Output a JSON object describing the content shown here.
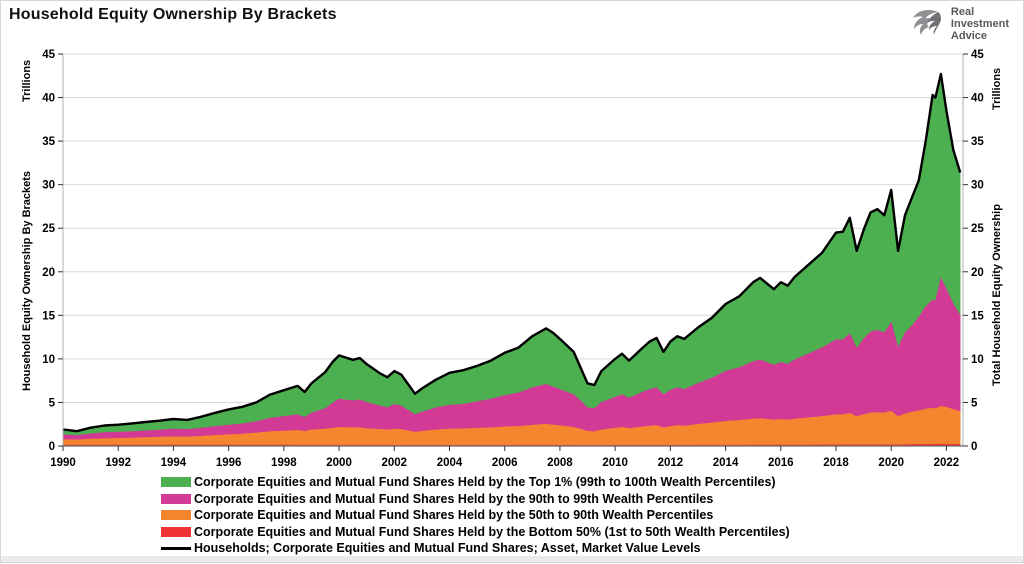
{
  "page": {
    "title": "Household Equity Ownership By Brackets"
  },
  "logo": {
    "line1": "Real",
    "line2": "Investment",
    "line3": "Advice",
    "icon": "eagle-icon"
  },
  "axes": {
    "left_unit": "Trillions",
    "left_label": "Household Equity Ownership By Brackets",
    "right_unit": "Trillions",
    "right_label": "Total Household Equity Ownership"
  },
  "colors": {
    "top1": "#4caf50",
    "p90_99": "#d23a96",
    "p50_90": "#f5852e",
    "bottom50": "#ee3233",
    "total_line": "#000000",
    "gridline": "#d9d9d9",
    "spine": "#b0b0b0",
    "tick": "#333333"
  },
  "legend": [
    {
      "type": "swatch",
      "color": "#4caf50",
      "label": "Corporate Equities and Mutual Fund Shares Held by the Top 1% (99th to 100th Wealth Percentiles)"
    },
    {
      "type": "swatch",
      "color": "#d23a96",
      "label": "Corporate Equities and Mutual Fund Shares Held by the 90th to 99th Wealth Percentiles"
    },
    {
      "type": "swatch",
      "color": "#f5852e",
      "label": "Corporate Equities and Mutual Fund Shares Held by the 50th to 90th Wealth Percentiles"
    },
    {
      "type": "swatch",
      "color": "#ee3233",
      "label": "Corporate Equities and Mutual Fund Shares Held by the Bottom 50% (1st to 50th Wealth Percentiles)"
    },
    {
      "type": "line",
      "color": "#000000",
      "label": "Households; Corporate Equities and Mutual Fund Shares; Asset, Market Value Levels"
    }
  ],
  "chart_data": {
    "type": "area",
    "stacked": true,
    "note": "Stacked area chart of US household equity ownership in $ trillions; series values below are cumulative stack-top boundaries read from the chart; black line = total (equals top-1% boundary).",
    "title": "Household Equity Ownership By Brackets",
    "ylabel_left": "Household Equity Ownership By Brackets (Trillions)",
    "ylabel_right": "Total Household Equity Ownership (Trillions)",
    "ylim": [
      0,
      45
    ],
    "xlim": [
      1990,
      2022.6
    ],
    "y_ticks": [
      0,
      5,
      10,
      15,
      20,
      25,
      30,
      35,
      40,
      45
    ],
    "x_ticks": [
      1990,
      1992,
      1994,
      1996,
      1998,
      2000,
      2002,
      2004,
      2006,
      2008,
      2010,
      2012,
      2014,
      2016,
      2018,
      2020,
      2022
    ],
    "grid": "horizontal",
    "legend_position": "bottom",
    "x": [
      1990.0,
      1990.5,
      1991.0,
      1991.5,
      1992.0,
      1992.5,
      1993.0,
      1993.5,
      1994.0,
      1994.5,
      1995.0,
      1995.5,
      1996.0,
      1996.5,
      1997.0,
      1997.5,
      1998.0,
      1998.5,
      1998.75,
      1999.0,
      1999.5,
      1999.75,
      2000.0,
      2000.5,
      2000.75,
      2001.0,
      2001.5,
      2001.75,
      2002.0,
      2002.25,
      2002.75,
      2003.0,
      2003.5,
      2004.0,
      2004.5,
      2005.0,
      2005.5,
      2006.0,
      2006.5,
      2007.0,
      2007.5,
      2007.75,
      2008.0,
      2008.5,
      2008.75,
      2009.0,
      2009.25,
      2009.5,
      2010.0,
      2010.25,
      2010.5,
      2011.0,
      2011.25,
      2011.5,
      2011.75,
      2012.0,
      2012.25,
      2012.5,
      2013.0,
      2013.5,
      2014.0,
      2014.5,
      2015.0,
      2015.25,
      2015.75,
      2016.0,
      2016.25,
      2016.5,
      2017.0,
      2017.5,
      2018.0,
      2018.25,
      2018.5,
      2018.75,
      2019.0,
      2019.25,
      2019.5,
      2019.75,
      2020.0,
      2020.25,
      2020.5,
      2020.75,
      2021.0,
      2021.25,
      2021.5,
      2021.6,
      2021.8,
      2022.0,
      2022.25,
      2022.5
    ],
    "series": [
      {
        "name": "Corporate Equities and Mutual Fund Shares Held by the Top 1% (99th to 100th Wealth Percentiles)",
        "color": "#4caf50",
        "cumulative_top": [
          1.9,
          1.7,
          2.1,
          2.35,
          2.45,
          2.6,
          2.75,
          2.9,
          3.1,
          3.0,
          3.35,
          3.8,
          4.2,
          4.5,
          5.0,
          5.9,
          6.4,
          6.9,
          6.2,
          7.2,
          8.5,
          9.6,
          10.4,
          9.9,
          10.1,
          9.4,
          8.3,
          7.9,
          8.6,
          8.2,
          6.0,
          6.6,
          7.6,
          8.4,
          8.7,
          9.2,
          9.8,
          10.7,
          11.3,
          12.6,
          13.5,
          13.0,
          12.3,
          10.8,
          9.0,
          7.2,
          7.0,
          8.6,
          10.0,
          10.6,
          9.8,
          11.3,
          12.0,
          12.4,
          10.8,
          12.0,
          12.6,
          12.3,
          13.6,
          14.7,
          16.3,
          17.2,
          18.8,
          19.3,
          18.0,
          18.8,
          18.4,
          19.4,
          20.8,
          22.2,
          24.5,
          24.6,
          26.2,
          22.4,
          24.8,
          26.8,
          27.2,
          26.5,
          29.4,
          22.4,
          26.5,
          28.5,
          30.5,
          35.0,
          40.3,
          40.0,
          42.7,
          38.5,
          34.0,
          31.4
        ]
      },
      {
        "name": "Corporate Equities and Mutual Fund Shares Held by the 90th to 99th Wealth Percentiles",
        "color": "#d23a96",
        "cumulative_top": [
          1.3,
          1.2,
          1.4,
          1.55,
          1.6,
          1.65,
          1.75,
          1.85,
          1.95,
          1.9,
          2.05,
          2.25,
          2.4,
          2.55,
          2.8,
          3.2,
          3.4,
          3.6,
          3.3,
          3.8,
          4.3,
          4.9,
          5.4,
          5.2,
          5.3,
          5.0,
          4.6,
          4.4,
          4.8,
          4.6,
          3.6,
          3.9,
          4.4,
          4.7,
          4.8,
          5.1,
          5.4,
          5.8,
          6.1,
          6.7,
          7.1,
          6.8,
          6.5,
          5.9,
          5.2,
          4.4,
          4.3,
          5.0,
          5.6,
          5.9,
          5.5,
          6.2,
          6.5,
          6.7,
          5.9,
          6.4,
          6.7,
          6.5,
          7.2,
          7.8,
          8.6,
          9.0,
          9.7,
          9.9,
          9.3,
          9.6,
          9.4,
          9.9,
          10.6,
          11.3,
          12.2,
          12.2,
          12.9,
          11.2,
          12.3,
          13.1,
          13.3,
          13.0,
          14.2,
          11.3,
          13.0,
          13.8,
          14.8,
          16.0,
          16.8,
          16.6,
          19.3,
          18.0,
          16.3,
          15.0
        ]
      },
      {
        "name": "Corporate Equities and Mutual Fund Shares Held by the 50th to 90th Wealth Percentiles",
        "color": "#f5852e",
        "cumulative_top": [
          0.75,
          0.7,
          0.8,
          0.85,
          0.88,
          0.92,
          0.98,
          1.02,
          1.08,
          1.05,
          1.12,
          1.22,
          1.3,
          1.38,
          1.5,
          1.65,
          1.72,
          1.8,
          1.68,
          1.85,
          1.95,
          2.05,
          2.15,
          2.1,
          2.12,
          2.0,
          1.9,
          1.85,
          1.95,
          1.9,
          1.6,
          1.7,
          1.85,
          1.95,
          1.98,
          2.05,
          2.1,
          2.2,
          2.25,
          2.4,
          2.5,
          2.42,
          2.35,
          2.15,
          1.95,
          1.7,
          1.65,
          1.85,
          2.05,
          2.15,
          2.02,
          2.2,
          2.3,
          2.35,
          2.1,
          2.25,
          2.35,
          2.28,
          2.5,
          2.65,
          2.85,
          2.95,
          3.1,
          3.15,
          3.0,
          3.05,
          3.0,
          3.1,
          3.25,
          3.4,
          3.6,
          3.6,
          3.75,
          3.4,
          3.6,
          3.8,
          3.85,
          3.8,
          4.0,
          3.4,
          3.7,
          3.9,
          4.05,
          4.25,
          4.35,
          4.3,
          4.55,
          4.45,
          4.2,
          3.95
        ]
      },
      {
        "name": "Corporate Equities and Mutual Fund Shares Held by the Bottom 50% (1st to 50th Wealth Percentiles)",
        "color": "#ee3233",
        "cumulative_top": [
          0.12,
          0.11,
          0.12,
          0.12,
          0.12,
          0.12,
          0.12,
          0.12,
          0.12,
          0.11,
          0.11,
          0.11,
          0.11,
          0.11,
          0.11,
          0.11,
          0.11,
          0.1,
          0.1,
          0.1,
          0.1,
          0.1,
          0.1,
          0.1,
          0.1,
          0.09,
          0.09,
          0.09,
          0.09,
          0.09,
          0.08,
          0.08,
          0.08,
          0.08,
          0.08,
          0.08,
          0.08,
          0.09,
          0.09,
          0.09,
          0.09,
          0.09,
          0.08,
          0.08,
          0.07,
          0.07,
          0.07,
          0.07,
          0.08,
          0.08,
          0.08,
          0.08,
          0.08,
          0.08,
          0.08,
          0.08,
          0.08,
          0.08,
          0.09,
          0.09,
          0.1,
          0.1,
          0.11,
          0.11,
          0.11,
          0.11,
          0.11,
          0.12,
          0.12,
          0.13,
          0.13,
          0.13,
          0.14,
          0.13,
          0.14,
          0.14,
          0.15,
          0.15,
          0.15,
          0.13,
          0.15,
          0.17,
          0.18,
          0.2,
          0.21,
          0.21,
          0.22,
          0.21,
          0.2,
          0.19
        ]
      }
    ],
    "line": {
      "name": "Households; Corporate Equities and Mutual Fund Shares; Asset, Market Value Levels",
      "color": "#000000",
      "equals": "total (same as top-1% cumulative_top)"
    }
  }
}
